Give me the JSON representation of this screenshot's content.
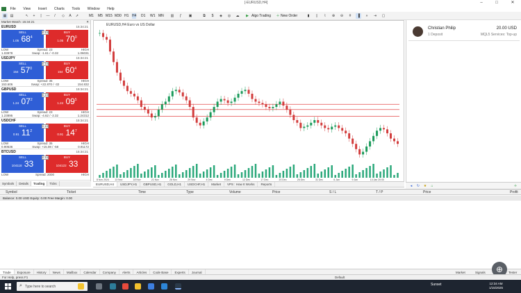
{
  "window": {
    "title": "[-EURUSD,H4]"
  },
  "menu": {
    "items": [
      "File",
      "View",
      "Insert",
      "Charts",
      "Tools",
      "Window",
      "Help"
    ]
  },
  "toolbar": {
    "timeframes": [
      "M1",
      "M5",
      "M15",
      "M30",
      "H1",
      "H4",
      "D1",
      "W1",
      "MN"
    ],
    "algo_trading": "Algo Trading",
    "new_order": "New Order"
  },
  "market_watch": {
    "title": "Market Watch: 15:34:21",
    "symbols": [
      {
        "symbol": "EURUSD",
        "time": "15:34:21",
        "lot": "0.10",
        "sell_label": "SELL",
        "buy_label": "BUY",
        "sell_small": "1.05",
        "sell_big": "68",
        "sell_sup": "4",
        "buy_small": "1.05",
        "buy_big": "70",
        "buy_sup": "0",
        "low_label": "LOW",
        "spread": "Spread: 23",
        "high_label": "HIGH",
        "low": "1.03978",
        "swap": "Swap: -1.61 / -0.32",
        "high": "1.06031"
      },
      {
        "symbol": "USDJPY",
        "time": "15:34:21",
        "lot": "0.10",
        "sell_label": "SELL",
        "buy_label": "BUY",
        "sell_small": "154",
        "sell_big": "57",
        "sell_sup": "0",
        "buy_small": "154",
        "buy_big": "60",
        "buy_sup": "4",
        "low_label": "LOW",
        "spread": "Spread: 35",
        "high_label": "HIGH",
        "low": "153.606",
        "swap": "Swap: +22.870 / -32",
        "high": "154.832"
      },
      {
        "symbol": "GBPUSD",
        "time": "15:34:21",
        "lot": "0.10",
        "sell_label": "SELL",
        "buy_label": "BUY",
        "sell_small": "1.24",
        "sell_big": "07",
        "sell_sup": "2",
        "buy_small": "1.24",
        "buy_big": "09",
        "buy_sup": "5",
        "low_label": "LOW",
        "spread": "Spread: 23",
        "high_label": "HIGH",
        "low": "1.23895",
        "swap": "Swap: -4.62 / -2.32",
        "high": "1.24312"
      },
      {
        "symbol": "USDCHF",
        "time": "15:34:21",
        "lot": "0.10",
        "sell_label": "SELL",
        "buy_label": "BUY",
        "sell_small": "0.91",
        "sell_big": "11",
        "sell_sup": "2",
        "buy_small": "0.91",
        "buy_big": "14",
        "buy_sup": "7",
        "low_label": "LOW",
        "spread": "Spread: 35",
        "high_label": "HIGH",
        "low": "0.90536",
        "swap": "Swap: +15.08 / -58",
        "high": "0.91172"
      },
      {
        "symbol": "BTCUSD",
        "time": "15:34:21",
        "lot": "0.10",
        "sell_label": "SELL",
        "buy_label": "BUY",
        "sell_small": "104118",
        "sell_big": "33",
        "sell_sup": "",
        "buy_small": "104122",
        "buy_big": "33",
        "buy_sup": "",
        "low_label": "LOW",
        "spread": "Spread: 2000",
        "high_label": "HIGH",
        "low": "",
        "swap": "",
        "high": ""
      }
    ],
    "tabs": [
      "Symbols",
      "Details",
      "Trading",
      "Ticks"
    ]
  },
  "chart": {
    "header": "EURUSD,H4  Euro vs US Dollar",
    "x_labels": [
      "8 Nov 2024",
      "13 Nov",
      "18 Nov",
      "21 Nov",
      "26 Nov",
      "29 Nov",
      "4 Dec",
      "9 Dec",
      "12 Dec",
      "17 Dec",
      "20 Dec",
      "26 Dec",
      "31 Dec",
      "6 Jan",
      "9 Jan",
      "14 Jan 20:00"
    ],
    "closes": [
      1.076,
      1.0745,
      1.0735,
      1.069,
      1.065,
      1.061,
      1.058,
      1.056,
      1.054,
      1.053,
      1.052,
      1.0505,
      1.048,
      1.047,
      1.0455,
      1.044,
      1.0445,
      1.047,
      1.049,
      1.05,
      1.052,
      1.054,
      1.0545,
      1.0535,
      1.052,
      1.0505,
      1.048,
      1.044,
      1.042,
      1.041,
      1.0425,
      1.044,
      1.046,
      1.048,
      1.05,
      1.051,
      1.0505,
      1.0495,
      1.05,
      1.0515,
      1.053,
      1.054,
      1.0545,
      1.053,
      1.051,
      1.05,
      1.0495,
      1.049,
      1.048,
      1.0475,
      1.048,
      1.049,
      1.05,
      1.0485,
      1.047,
      1.045,
      1.043,
      1.042,
      1.04,
      1.0405,
      1.041,
      1.042,
      1.043,
      1.042,
      1.041,
      1.04,
      1.0395,
      1.0405,
      1.041,
      1.04,
      1.039,
      1.038,
      1.036,
      1.034,
      1.032,
      1.03,
      1.031,
      1.033,
      1.035,
      1.037,
      1.039,
      1.04,
      1.0395,
      1.038,
      1.036,
      1.035,
      1.034
    ],
    "lines": [
      "red",
      "red",
      "red"
    ]
  },
  "chart_tabs": [
    "EURUSD,H4",
    "USDJPY,H1",
    "GBPUSD,H1",
    "GOLD,H1",
    "USDCHF,H1",
    "Market",
    "VPS : How It Works",
    "Reports"
  ],
  "signal": {
    "name": "Christian Philip",
    "subtitle": "1 Deposit",
    "amount": "20.00 USD",
    "service": "MQL5 Services: Top-up"
  },
  "toolbox": {
    "columns": [
      "Symbol",
      "Ticket",
      "Time",
      "Type",
      "Volume",
      "Price",
      "S / L",
      "T / P",
      "Price",
      "Profit"
    ],
    "balance": "Balance: 0.00 USD  Equity: 0.00  Free Margin: 0.00",
    "tabs": [
      "Trade",
      "Exposure",
      "History",
      "News",
      "Mailbox",
      "Calendar",
      "Company",
      "Alerts",
      "Articles",
      "Code Base",
      "Experts",
      "Journal"
    ],
    "right_items": [
      "Market",
      "Signals",
      "VPS",
      "Tester"
    ]
  },
  "status": {
    "help": "For Help, press F1",
    "profile": "Default"
  },
  "taskbar": {
    "search_placeholder": "Type here to search",
    "weather": "Sunset",
    "time": "12:34 AM",
    "date": "1/15/2025"
  }
}
